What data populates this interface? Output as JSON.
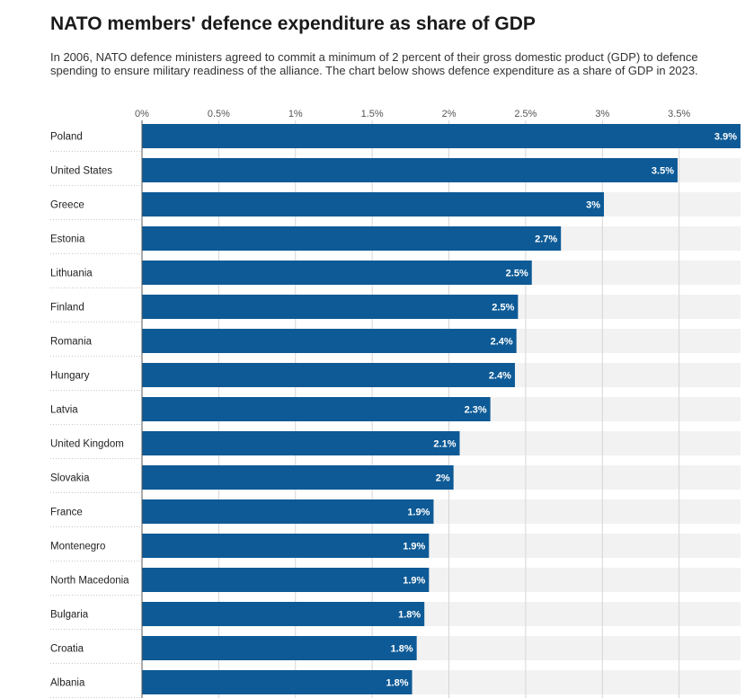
{
  "title": "NATO members' defence expenditure as share of GDP",
  "subtitle": "In 2006, NATO defence ministers agreed to commit a minimum of 2 percent of their gross domestic product (GDP) to defence spending to ensure military readiness of the alliance. The chart below shows defence expenditure as a share of GDP in 2023.",
  "colors": {
    "bar": "#0d5a96",
    "track": "#f2f2f2",
    "grid": "#d5d5d5"
  },
  "chart_data": {
    "type": "bar",
    "orientation": "horizontal",
    "xlim": [
      0,
      3.9
    ],
    "x_ticks": [
      0,
      0.5,
      1,
      1.5,
      2,
      2.5,
      3,
      3.5
    ],
    "x_tick_labels": [
      "0%",
      "0.5%",
      "1%",
      "1.5%",
      "2%",
      "2.5%",
      "3%",
      "3.5%"
    ],
    "categories": [
      "Poland",
      "United States",
      "Greece",
      "Estonia",
      "Lithuania",
      "Finland",
      "Romania",
      "Hungary",
      "Latvia",
      "United Kingdom",
      "Slovakia",
      "France",
      "Montenegro",
      "North Macedonia",
      "Bulgaria",
      "Croatia",
      "Albania"
    ],
    "values": [
      3.9,
      3.49,
      3.01,
      2.73,
      2.54,
      2.45,
      2.44,
      2.43,
      2.27,
      2.07,
      2.03,
      1.9,
      1.87,
      1.87,
      1.84,
      1.79,
      1.76
    ],
    "value_labels": [
      "3.9%",
      "3.5%",
      "3%",
      "2.7%",
      "2.5%",
      "2.5%",
      "2.4%",
      "2.4%",
      "2.3%",
      "2.1%",
      "2%",
      "1.9%",
      "1.9%",
      "1.9%",
      "1.8%",
      "1.8%",
      "1.8%"
    ],
    "grid": true
  }
}
